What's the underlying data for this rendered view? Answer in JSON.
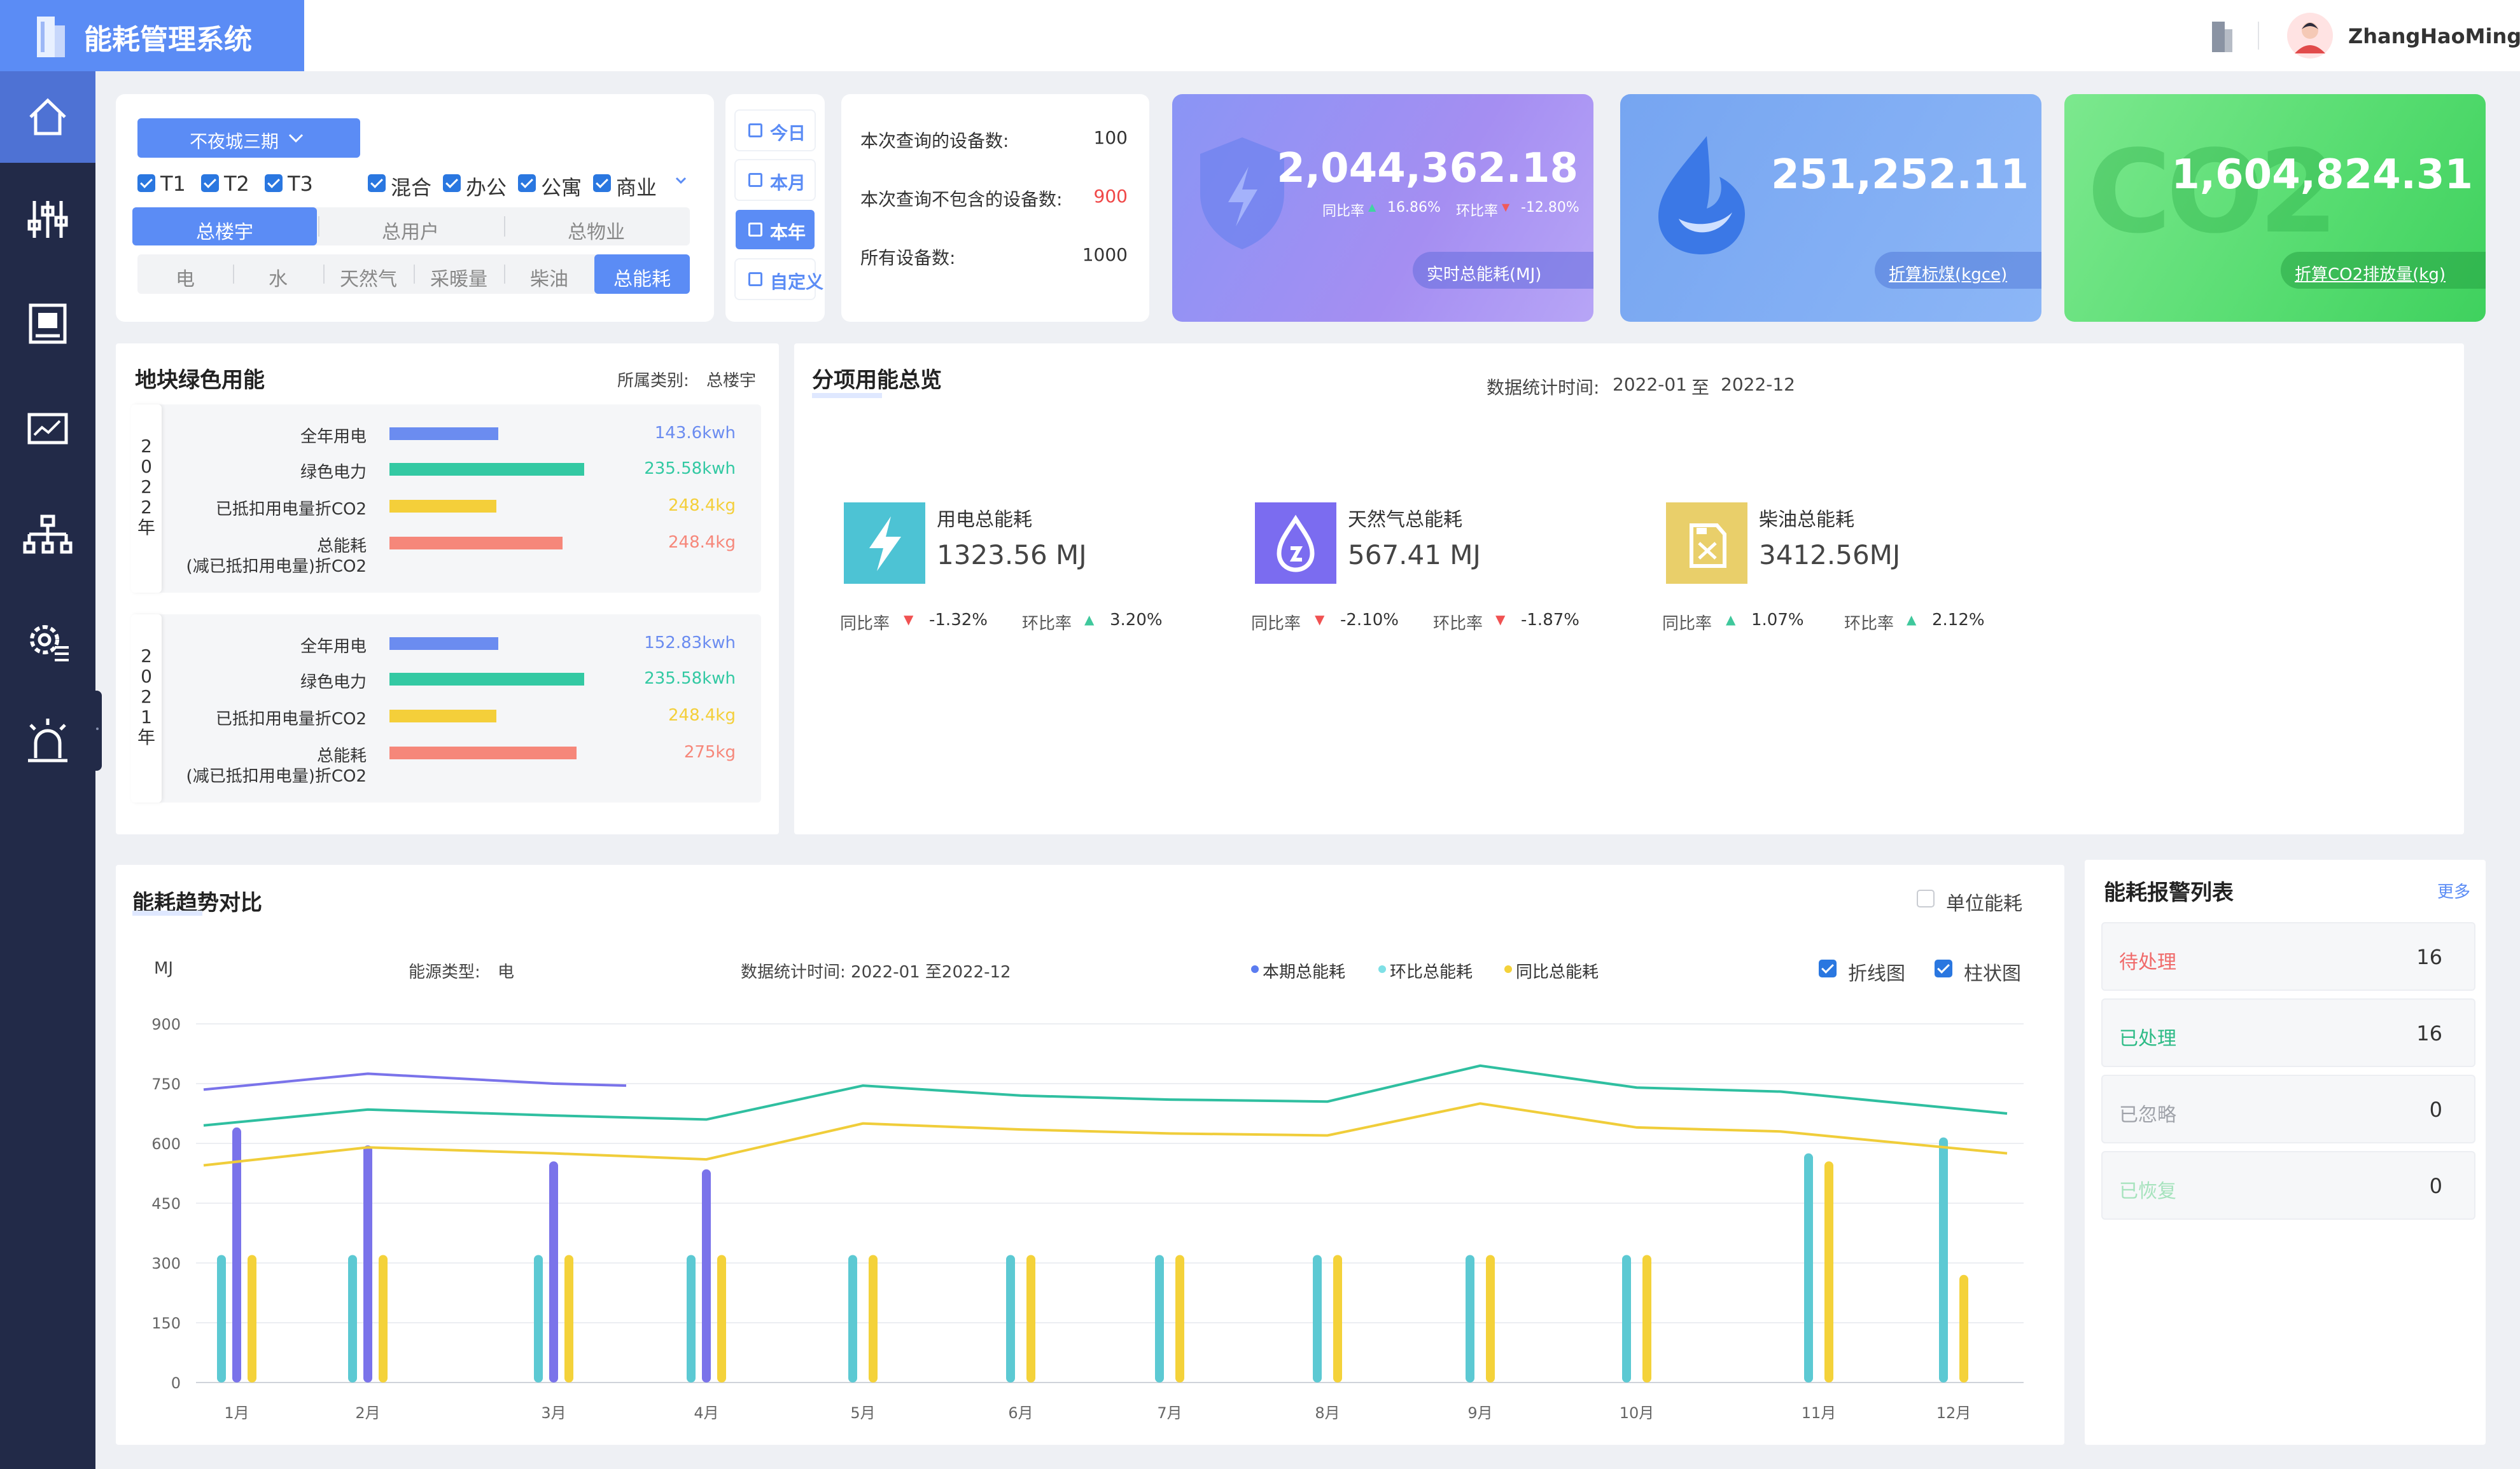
{
  "header": {
    "title": "能耗管理系统",
    "username": "ZhangHaoMing"
  },
  "nav": [
    "home-icon",
    "equalizer-icon",
    "device-panel-icon",
    "monitor-chart-icon",
    "org-tree-icon",
    "gear-list-icon",
    "alarm-light-icon"
  ],
  "filter": {
    "site": "不夜城三期",
    "buildings": [
      "T1",
      "T2",
      "T3"
    ],
    "types": [
      "混合",
      "办公",
      "公寓",
      "商业"
    ],
    "scope_tabs": [
      "总楼宇",
      "总用户",
      "总物业"
    ],
    "energy_tabs": [
      "电",
      "水",
      "天然气",
      "采暖量",
      "柴油",
      "总能耗"
    ]
  },
  "period": [
    "今日",
    "本月",
    "本年",
    "自定义"
  ],
  "stats": {
    "rows": [
      {
        "label": "本次查询的设备数:",
        "value": "100"
      },
      {
        "label": "本次查询不包含的设备数:",
        "value": "900"
      },
      {
        "label": "所有设备数:",
        "value": "1000"
      }
    ]
  },
  "kpi": [
    {
      "value": "2,044,362.18",
      "label": "实时总能耗(MJ)",
      "yoy_label": "同比率",
      "yoy": "16.86%",
      "mom_label": "环比率",
      "mom": "-12.80%"
    },
    {
      "value": "251,252.11",
      "label": "折算标煤(kgce)"
    },
    {
      "value": "1,604,824.31",
      "label": "折算CO2排放量(kg)",
      "logo": "CO2"
    }
  ],
  "green": {
    "title": "地块绿色用能",
    "category_label": "所属类别:",
    "category": "总楼宇",
    "years": [
      {
        "year": "2022年",
        "labels": [
          "全年用电",
          "绿色电力",
          "已抵扣用电量折CO2",
          "总能耗"
        ],
        "sub": "(减已抵扣用电量)折CO2",
        "values": [
          "143.6kwh",
          "235.58kwh",
          "248.4kg",
          "248.4kg"
        ],
        "fill": [
          0.56,
          1.0,
          0.55,
          0.89
        ]
      },
      {
        "year": "2021年",
        "labels": [
          "全年用电",
          "绿色电力",
          "已抵扣用电量折CO2",
          "总能耗"
        ],
        "sub": "(减已抵扣用电量)折CO2",
        "values": [
          "152.83kwh",
          "235.58kwh",
          "248.4kg",
          "275kg"
        ],
        "fill": [
          0.56,
          1.0,
          0.55,
          0.96
        ]
      }
    ],
    "colors": [
      "#6b8cf0",
      "#33c9a3",
      "#f4cf3a",
      "#f6877a"
    ]
  },
  "overview": {
    "title": "分项用能总览",
    "period_label": "数据统计时间:",
    "from": "2022-01",
    "to_word": "至",
    "to": "2022-12",
    "items": [
      {
        "name": "用电总能耗",
        "value": "1323.56 MJ",
        "yoy_label": "同比率",
        "yoy": "-1.32%",
        "yoy_dir": "down",
        "mom_label": "环比率",
        "mom": "3.20%",
        "mom_dir": "up",
        "color": "#4dc3d4",
        "icon": "lightning-icon"
      },
      {
        "name": "天然气总能耗",
        "value": "567.41 MJ",
        "yoy_label": "同比率",
        "yoy": "-2.10%",
        "yoy_dir": "down",
        "mom_label": "环比率",
        "mom": "-1.87%",
        "mom_dir": "down",
        "color": "#7b6cf0",
        "icon": "gas-drop-icon"
      },
      {
        "name": "柴油总能耗",
        "value": "3412.56MJ",
        "yoy_label": "同比率",
        "yoy": "1.07%",
        "yoy_dir": "up",
        "mom_label": "环比率",
        "mom": "2.12%",
        "mom_dir": "up",
        "color": "#e9cf6a",
        "icon": "fuel-can-icon"
      }
    ]
  },
  "trend": {
    "title": "能耗趋势对比",
    "unit_toggle": "单位能耗",
    "unit": "MJ",
    "energy_label": "能源类型:",
    "energy": "电",
    "period": "数据统计时间:  2022-01 至2022-12",
    "legend": [
      "本期总能耗",
      "环比总能耗",
      "同比总能耗"
    ],
    "line_toggle": "折线图",
    "bar_toggle": "柱状图"
  },
  "alarm": {
    "title": "能耗报警列表",
    "more": "更多",
    "rows": [
      {
        "label": "待处理",
        "count": "16",
        "color": "#f06a6a"
      },
      {
        "label": "已处理",
        "count": "16",
        "color": "#2dbb86"
      },
      {
        "label": "已忽略",
        "count": "0",
        "color": "#a0a3aa"
      },
      {
        "label": "已恢复",
        "count": "0",
        "color": "#a6e3bd"
      }
    ]
  },
  "chart_data": {
    "type": "bar",
    "categories": [
      "1月",
      "2月",
      "3月",
      "4月",
      "5月",
      "6月",
      "7月",
      "8月",
      "9月",
      "10月",
      "11月",
      "12月"
    ],
    "ylim": [
      0,
      900
    ],
    "yticks": [
      "0",
      "150",
      "300",
      "450",
      "600",
      "750",
      "900"
    ],
    "bars": [
      {
        "name": "本期总能耗",
        "color": "#7a73ea",
        "values": [
          640,
          595,
          555,
          535,
          null,
          null,
          null,
          null,
          null,
          null,
          null,
          null
        ]
      },
      {
        "name": "环比总能耗",
        "color": "#5cc9d3",
        "values": [
          320,
          320,
          320,
          320,
          320,
          320,
          320,
          320,
          320,
          320,
          575,
          615
        ]
      },
      {
        "name": "同比总能耗",
        "color": "#f4d23a",
        "values": [
          320,
          320,
          320,
          320,
          320,
          320,
          320,
          320,
          320,
          320,
          555,
          270
        ]
      }
    ],
    "lines": [
      {
        "name": "本期总能耗",
        "color": "#7a73ea",
        "values": [
          735,
          775,
          750,
          745,
          null,
          null,
          null,
          null,
          null,
          null,
          null,
          null
        ]
      },
      {
        "name": "环比总能耗",
        "color": "#2fbfa0",
        "values": [
          645,
          685,
          670,
          660,
          745,
          720,
          710,
          705,
          795,
          740,
          730,
          675
        ]
      },
      {
        "name": "同比总能耗",
        "color": "#f0cd3a",
        "values": [
          545,
          590,
          575,
          560,
          650,
          635,
          625,
          620,
          700,
          640,
          630,
          575
        ]
      }
    ]
  }
}
